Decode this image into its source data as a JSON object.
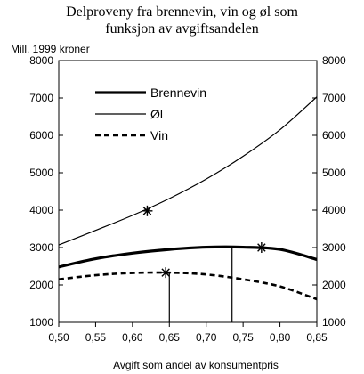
{
  "chart_data": {
    "type": "line",
    "title_line1": "Delproveny fra brennevin, vin og øl som",
    "title_line2": "funksjon av avgiftsandelen",
    "ylabel": "Mill. 1999 kroner",
    "xlabel": "Avgift som andel av konsumentpris",
    "xlim": [
      0.5,
      0.85
    ],
    "ylim": [
      1000,
      8000
    ],
    "x_ticks": [
      0.5,
      0.55,
      0.6,
      0.65,
      0.7,
      0.75,
      0.8,
      0.85
    ],
    "x_tick_labels": [
      "0,50",
      "0,55",
      "0,60",
      "0,65",
      "0,70",
      "0,75",
      "0,80",
      "0,85"
    ],
    "y_ticks": [
      1000,
      2000,
      3000,
      4000,
      5000,
      6000,
      7000,
      8000
    ],
    "y_tick_labels": [
      "1000",
      "2000",
      "3000",
      "4000",
      "5000",
      "6000",
      "7000",
      "8000"
    ],
    "grid": false,
    "legend_position": "top-left",
    "x": [
      0.5,
      0.55,
      0.6,
      0.65,
      0.7,
      0.75,
      0.8,
      0.85
    ],
    "series": [
      {
        "name": "Brennevin",
        "style": "thick",
        "values": [
          2480,
          2700,
          2850,
          2950,
          3010,
          3010,
          2950,
          2680
        ]
      },
      {
        "name": "Øl",
        "style": "thin",
        "values": [
          3070,
          3460,
          3860,
          4310,
          4830,
          5440,
          6150,
          7030
        ]
      },
      {
        "name": "Vin",
        "style": "dashed",
        "values": [
          2150,
          2260,
          2320,
          2330,
          2280,
          2150,
          1960,
          1620
        ]
      }
    ],
    "markers": [
      {
        "x": 0.62,
        "y": 3980
      },
      {
        "x": 0.645,
        "y": 2330
      },
      {
        "x": 0.775,
        "y": 3000
      }
    ],
    "reference_lines": [
      {
        "x": 0.65,
        "y": 2330
      },
      {
        "x": 0.735,
        "y": 3030
      }
    ]
  }
}
